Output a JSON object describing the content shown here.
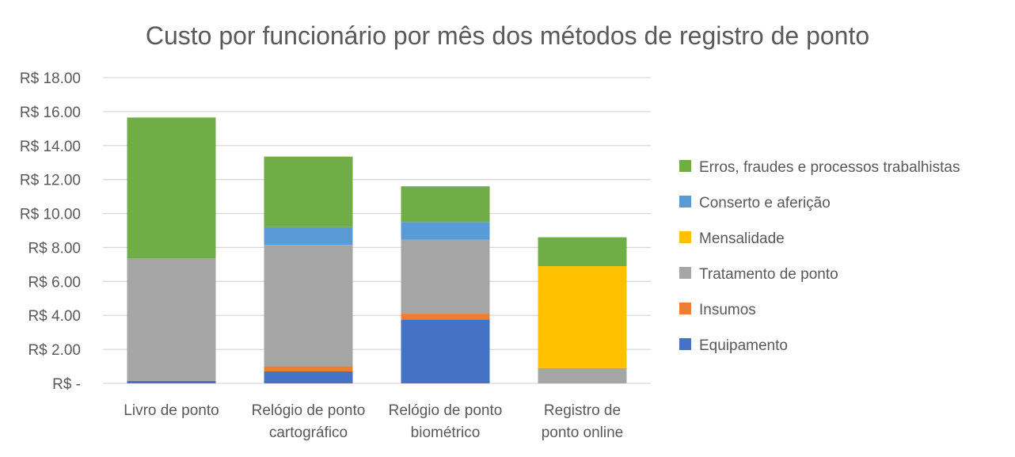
{
  "chart_data": {
    "type": "bar",
    "stacked": true,
    "title": "Custo por funcionário por mês dos métodos de registro de ponto",
    "xlabel": "",
    "ylabel": "",
    "ylim": [
      0,
      18
    ],
    "yticks": [
      0,
      2,
      4,
      6,
      8,
      10,
      12,
      14,
      16,
      18
    ],
    "ytick_labels": [
      "R$ -",
      "R$ 2.00",
      "R$ 4.00",
      "R$ 6.00",
      "R$ 8.00",
      "R$ 10.00",
      "R$ 12.00",
      "R$ 14.00",
      "R$ 16.00",
      "R$ 18.00"
    ],
    "grid": true,
    "legend_position": "right",
    "categories": [
      [
        "Livro de ponto"
      ],
      [
        "Relógio de ponto",
        "cartográfico"
      ],
      [
        "Relógio de ponto",
        "biométrico"
      ],
      [
        "Registro de",
        "ponto online"
      ]
    ],
    "series": [
      {
        "name": "Equipamento",
        "color": "#4472c4",
        "values": [
          0.15,
          0.7,
          3.75,
          0
        ]
      },
      {
        "name": "Insumos",
        "color": "#ed7d31",
        "values": [
          0,
          0.3,
          0.35,
          0
        ]
      },
      {
        "name": "Tratamento de ponto",
        "color": "#a5a5a5",
        "values": [
          7.2,
          7.15,
          4.35,
          0.9
        ]
      },
      {
        "name": "Mensalidade",
        "color": "#ffc000",
        "values": [
          0,
          0,
          0,
          6.0
        ]
      },
      {
        "name": "Conserto e aferição",
        "color": "#5b9bd5",
        "values": [
          0,
          1.05,
          1.05,
          0
        ]
      },
      {
        "name": "Erros, fraudes e processos trabalhistas",
        "color": "#70ad47",
        "values": [
          8.3,
          4.15,
          2.1,
          1.7
        ]
      }
    ]
  }
}
